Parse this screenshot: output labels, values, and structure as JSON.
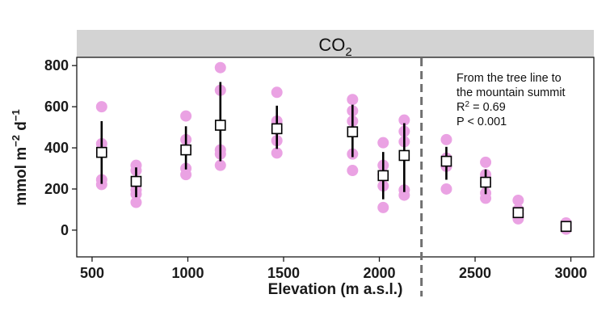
{
  "chart_data": {
    "type": "scatter",
    "panel_title": "CO",
    "panel_title_sub": "2",
    "xlabel": "Elevation (m a.s.l.)",
    "ylabel": "mmol m",
    "ylabel_exp1": "−2",
    "ylabel_mid": " d",
    "ylabel_exp2": "−1",
    "xlim": [
      420,
      3120
    ],
    "ylim": [
      -130,
      840
    ],
    "xticks": [
      500,
      1000,
      1500,
      2000,
      2500,
      3000
    ],
    "xtick_labels": [
      "500",
      "1000",
      "1500",
      "2000",
      "2500",
      "3000"
    ],
    "yticks": [
      0,
      200,
      400,
      600,
      800
    ],
    "ytick_labels": [
      "0",
      "200",
      "400",
      "600",
      "800"
    ],
    "tree_line_x": 2220,
    "annotation": {
      "line1": "From the tree line to",
      "line2": "the mountain summit",
      "r2_prefix": "R",
      "r2_sup": "2",
      "r2_suffix": " = 0.69",
      "p_value": "P < 0.001"
    },
    "colors": {
      "points": "#eaa2e3",
      "summary": "#000000",
      "strip_bg": "#d3d3d3",
      "dashed_line": "#707070"
    },
    "grid": false,
    "legend": "none",
    "sites": [
      {
        "x": 550,
        "mean": 378,
        "lower": 225,
        "upper": 530,
        "points": [
          600,
          420,
          380,
          245,
          222
        ]
      },
      {
        "x": 730,
        "mean": 237,
        "lower": 160,
        "upper": 305,
        "points": [
          315,
          290,
          195,
          175,
          135
        ]
      },
      {
        "x": 990,
        "mean": 390,
        "lower": 295,
        "upper": 505,
        "points": [
          555,
          440,
          390,
          300,
          270
        ]
      },
      {
        "x": 1170,
        "mean": 510,
        "lower": 335,
        "upper": 720,
        "points": [
          790,
          680,
          390,
          370,
          315
        ]
      },
      {
        "x": 1465,
        "mean": 493,
        "lower": 395,
        "upper": 605,
        "points": [
          670,
          530,
          490,
          435,
          375
        ]
      },
      {
        "x": 1860,
        "mean": 478,
        "lower": 355,
        "upper": 610,
        "points": [
          635,
          580,
          530,
          370,
          290
        ]
      },
      {
        "x": 2020,
        "mean": 265,
        "lower": 150,
        "upper": 380,
        "points": [
          425,
          315,
          270,
          215,
          110
        ]
      },
      {
        "x": 2130,
        "mean": 363,
        "lower": 185,
        "upper": 520,
        "points": [
          535,
          480,
          430,
          195,
          170
        ]
      },
      {
        "x": 2350,
        "mean": 335,
        "lower": 245,
        "upper": 405,
        "points": [
          440,
          350,
          310,
          200
        ]
      },
      {
        "x": 2555,
        "mean": 233,
        "lower": 175,
        "upper": 295,
        "points": [
          330,
          270,
          230,
          180,
          155
        ]
      },
      {
        "x": 2725,
        "mean": 85,
        "lower": 60,
        "upper": 110,
        "points": [
          145,
          100,
          80,
          65,
          55
        ]
      },
      {
        "x": 2975,
        "mean": 18,
        "lower": 8,
        "upper": 30,
        "points": [
          35,
          22,
          15,
          10,
          5
        ]
      }
    ]
  }
}
